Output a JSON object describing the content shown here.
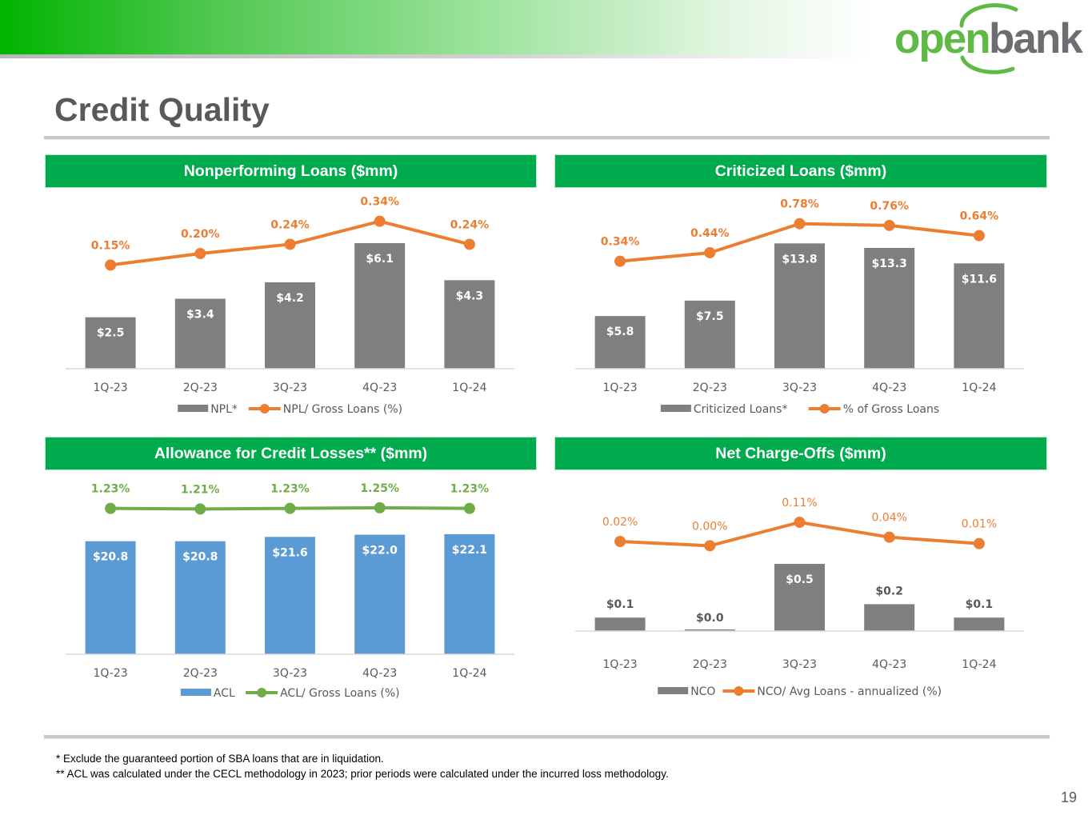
{
  "brand": {
    "logo_part1": "open",
    "logo_part2": "bank",
    "green": "#5fb946",
    "gray": "#6d6e71"
  },
  "page": {
    "title": "Credit Quality",
    "number": "19"
  },
  "footnotes": [
    "* Exclude the guaranteed portion of SBA loans that are in liquidation.",
    "** ACL was calculated under the CECL methodology in 2023; prior periods were calculated under the incurred loss methodology."
  ],
  "chart_data": [
    {
      "id": "npl",
      "type": "bar",
      "title": "Nonperforming Loans ($mm)",
      "categories": [
        "1Q-23",
        "2Q-23",
        "3Q-23",
        "4Q-23",
        "1Q-24"
      ],
      "series": [
        {
          "name": "NPL*",
          "type": "bar",
          "values": [
            2.5,
            3.4,
            4.2,
            6.1,
            4.3
          ],
          "labels": [
            "$2.5",
            "$3.4",
            "$4.2",
            "$6.1",
            "$4.3"
          ],
          "color": "#7f7f7f"
        },
        {
          "name": "NPL/ Gross Loans (%)",
          "type": "line",
          "values": [
            0.15,
            0.2,
            0.24,
            0.34,
            0.24
          ],
          "labels": [
            "0.15%",
            "0.20%",
            "0.24%",
            "0.34%",
            "0.24%"
          ],
          "color": "#ed7d31"
        }
      ],
      "bar_ylim": [
        0,
        7.5
      ],
      "line_ylim": [
        -0.3,
        0.37
      ],
      "legend": "bottom"
    },
    {
      "id": "criticized",
      "type": "bar",
      "title": "Criticized Loans ($mm)",
      "categories": [
        "1Q-23",
        "2Q-23",
        "3Q-23",
        "4Q-23",
        "1Q-24"
      ],
      "series": [
        {
          "name": "Criticized Loans*",
          "type": "bar",
          "values": [
            5.8,
            7.5,
            13.8,
            13.3,
            11.6
          ],
          "labels": [
            "$5.8",
            "$7.5",
            "$13.8",
            "$13.3",
            "$11.6"
          ],
          "color": "#7f7f7f"
        },
        {
          "name": "% of Gross Loans",
          "type": "line",
          "values": [
            0.34,
            0.44,
            0.78,
            0.76,
            0.64
          ],
          "labels": [
            "0.34%",
            "0.44%",
            "0.78%",
            "0.76%",
            "0.64%"
          ],
          "color": "#ed7d31"
        }
      ],
      "bar_ylim": [
        0,
        17.0
      ],
      "line_ylim": [
        -0.92,
        0.89
      ],
      "legend": "bottom"
    },
    {
      "id": "acl",
      "type": "bar",
      "title": "Allowance for Credit Losses** ($mm)",
      "categories": [
        "1Q-23",
        "2Q-23",
        "3Q-23",
        "4Q-23",
        "1Q-24"
      ],
      "series": [
        {
          "name": "ACL",
          "type": "bar",
          "values": [
            20.8,
            20.8,
            21.6,
            22.0,
            22.1
          ],
          "labels": [
            "$20.8",
            "$20.8",
            "$21.6",
            "$22.0",
            "$22.1"
          ],
          "color": "#5b9bd5"
        },
        {
          "name": "ACL/ Gross Loans (%)",
          "type": "line",
          "values": [
            1.23,
            1.21,
            1.23,
            1.25,
            1.23
          ],
          "labels": [
            "1.23%",
            "1.21%",
            "1.23%",
            "1.25%",
            "1.23%"
          ],
          "color": "#70ad47"
        }
      ],
      "bar_ylim": [
        0,
        29.0
      ],
      "line_ylim": [
        -3.5,
        1.61
      ],
      "legend": "bottom"
    },
    {
      "id": "nco",
      "type": "bar",
      "title": "Net Charge-Offs ($mm)",
      "categories": [
        "1Q-23",
        "2Q-23",
        "3Q-23",
        "4Q-23",
        "1Q-24"
      ],
      "series": [
        {
          "name": "NCO",
          "type": "bar",
          "values": [
            0.1,
            0.0,
            0.5,
            0.2,
            0.1
          ],
          "labels": [
            "$0.1",
            "$0.0",
            "$0.5",
            "$0.2",
            "$0.1"
          ],
          "color": "#7f7f7f"
        },
        {
          "name": "NCO/ Avg Loans - annualized (%)",
          "type": "line",
          "values": [
            0.02,
            0.0,
            0.11,
            0.04,
            0.01
          ],
          "labels": [
            "0.02%",
            "0.00%",
            "0.11%",
            "0.04%",
            "0.01%"
          ],
          "color": "#ed7d31"
        }
      ],
      "bar_ylim": [
        0,
        1.0
      ],
      "line_ylim": [
        -0.4,
        0.23
      ],
      "legend": "bottom"
    }
  ]
}
